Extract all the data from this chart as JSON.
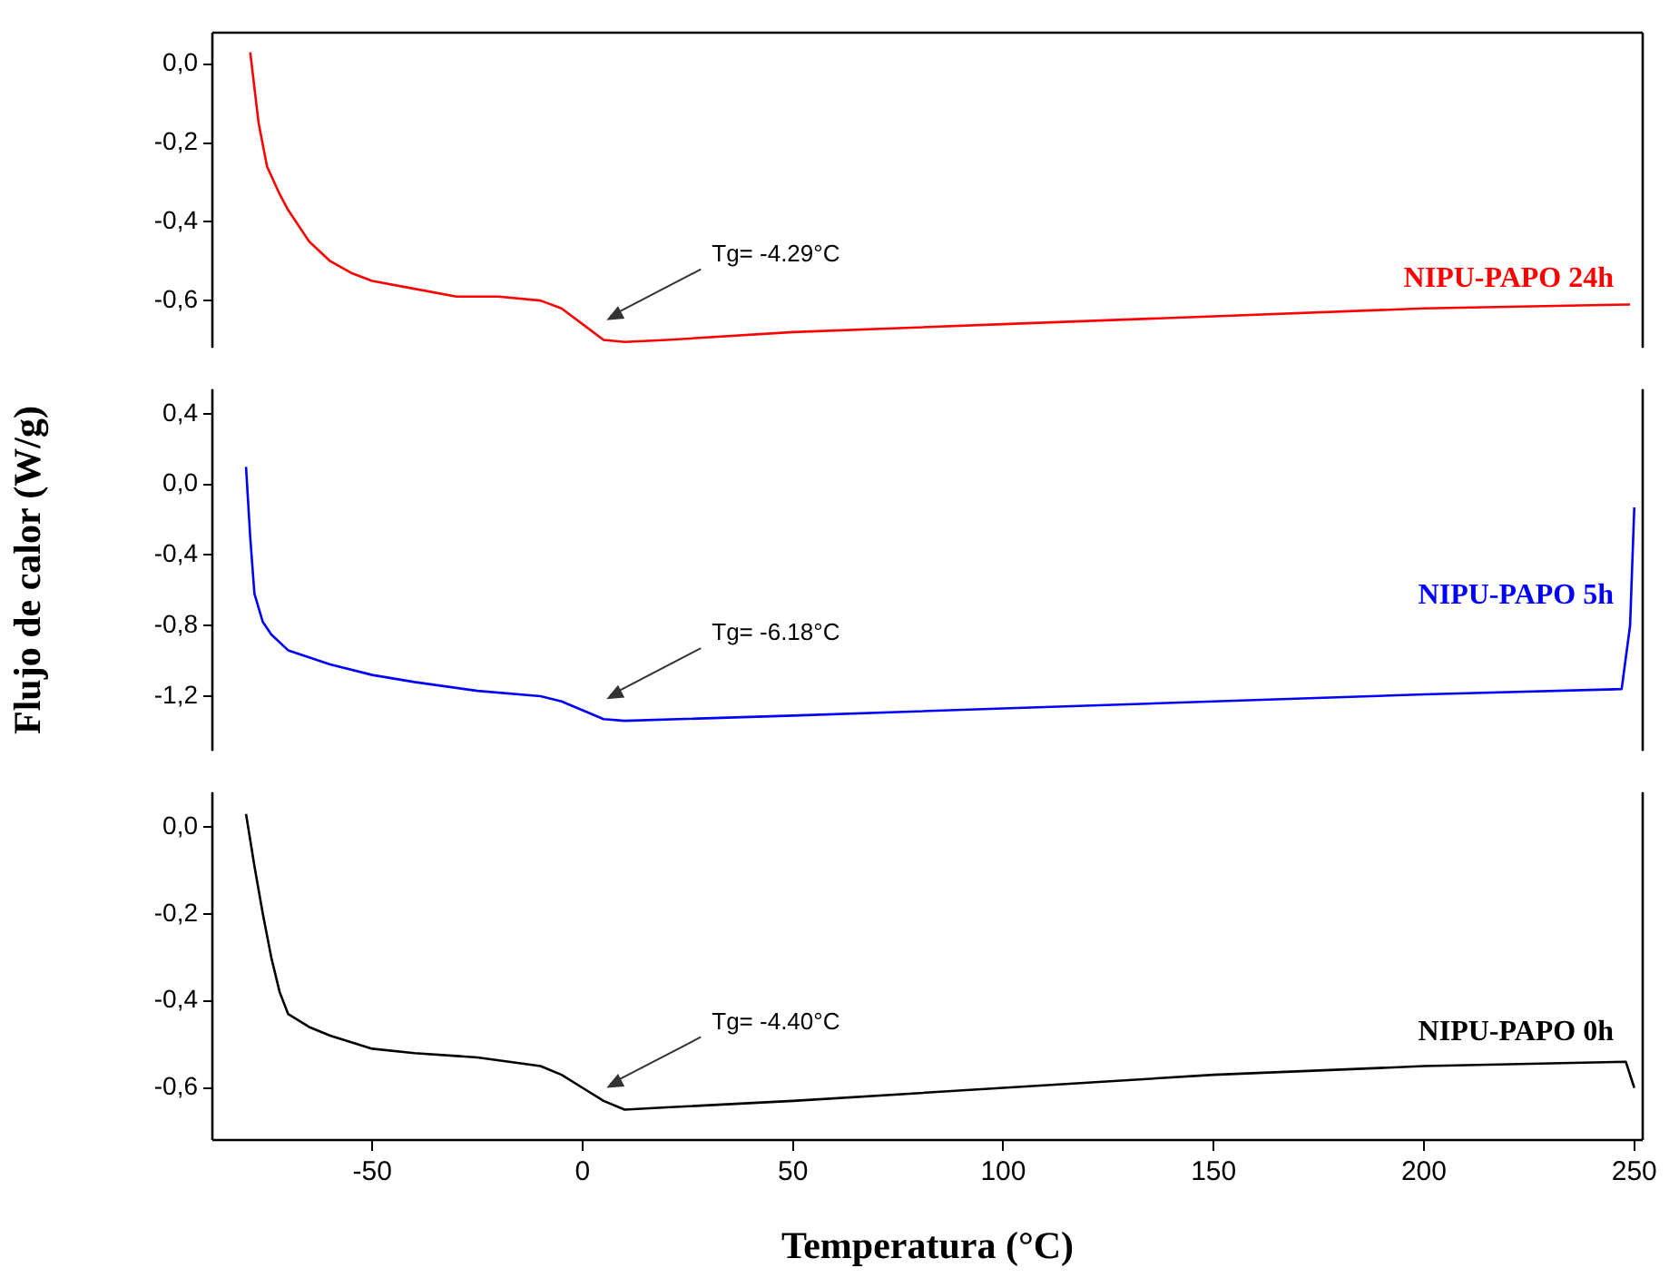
{
  "chart_data": [
    {
      "type": "line",
      "xlim": [
        -88,
        252
      ],
      "xticks": [
        -50,
        0,
        50,
        100,
        150,
        200,
        250
      ],
      "ylim": [
        -0.72,
        0.08
      ],
      "yticks": [
        {
          "value": 0,
          "label": "0,0"
        },
        {
          "value": -0.2,
          "label": "-0,2"
        },
        {
          "value": -0.4,
          "label": "-0,4"
        },
        {
          "value": -0.6,
          "label": "-0,6"
        }
      ],
      "tick_labels": "y",
      "legend": false,
      "grid": false,
      "series": [
        {
          "name": "NIPU-PAPO 24h",
          "color": "#ff0000",
          "x": [
            -79,
            -77,
            -75,
            -72,
            -70,
            -65,
            -60,
            -55,
            -50,
            -40,
            -30,
            -20,
            -10,
            -5,
            0,
            5,
            10,
            20,
            50,
            100,
            150,
            200,
            249
          ],
          "values": [
            0.03,
            -0.15,
            -0.26,
            -0.33,
            -0.37,
            -0.45,
            -0.5,
            -0.53,
            -0.55,
            -0.57,
            -0.59,
            -0.59,
            -0.6,
            -0.62,
            -0.66,
            -0.7,
            -0.705,
            -0.7,
            -0.68,
            -0.66,
            -0.64,
            -0.62,
            -0.61
          ]
        }
      ],
      "annotations": [
        "Tg= -4.29°C"
      ]
    },
    {
      "type": "line",
      "xlim": [
        -88,
        252
      ],
      "xticks": [
        -50,
        0,
        50,
        100,
        150,
        200,
        250
      ],
      "ylim": [
        -1.51,
        0.54
      ],
      "yticks": [
        {
          "value": 0.4,
          "label": "0,4"
        },
        {
          "value": 0,
          "label": "0,0"
        },
        {
          "value": -0.4,
          "label": "-0,4"
        },
        {
          "value": -0.8,
          "label": "-0,8"
        },
        {
          "value": -1.2,
          "label": "-1,2"
        }
      ],
      "tick_labels": "y",
      "legend": false,
      "grid": false,
      "ylabel": "Flujo de calor (W/g)",
      "series": [
        {
          "name": "NIPU-PAPO 5h",
          "color": "#0000ff",
          "x": [
            -80,
            -79,
            -78,
            -76,
            -74,
            -70,
            -60,
            -50,
            -40,
            -25,
            -10,
            -5,
            0,
            5,
            10,
            50,
            100,
            150,
            200,
            247,
            249,
            250
          ],
          "values": [
            0.1,
            -0.3,
            -0.62,
            -0.78,
            -0.85,
            -0.94,
            -1.02,
            -1.08,
            -1.12,
            -1.17,
            -1.2,
            -1.23,
            -1.28,
            -1.33,
            -1.34,
            -1.31,
            -1.27,
            -1.23,
            -1.19,
            -1.16,
            -0.8,
            -0.13
          ]
        }
      ],
      "annotations": [
        "Tg= -6.18°C"
      ]
    },
    {
      "type": "line",
      "xlim": [
        -88,
        252
      ],
      "xticks": [
        -50,
        0,
        50,
        100,
        150,
        200,
        250
      ],
      "ylim": [
        -0.72,
        0.08
      ],
      "yticks": [
        {
          "value": 0,
          "label": "0,0"
        },
        {
          "value": -0.2,
          "label": "-0,2"
        },
        {
          "value": -0.4,
          "label": "-0,4"
        },
        {
          "value": -0.6,
          "label": "-0,6"
        }
      ],
      "legend": false,
      "grid": false,
      "xlabel": "Temperatura (°C)",
      "series": [
        {
          "name": "NIPU-PAPO 0h",
          "color": "#000000",
          "x": [
            -80,
            -79,
            -78,
            -76,
            -74,
            -72,
            -70,
            -65,
            -60,
            -50,
            -40,
            -25,
            -10,
            -5,
            0,
            5,
            10,
            20,
            50,
            100,
            150,
            200,
            248,
            250
          ],
          "values": [
            0.03,
            -0.03,
            -0.09,
            -0.2,
            -0.3,
            -0.38,
            -0.43,
            -0.46,
            -0.48,
            -0.51,
            -0.52,
            -0.53,
            -0.55,
            -0.57,
            -0.6,
            -0.63,
            -0.65,
            -0.645,
            -0.63,
            -0.6,
            -0.57,
            -0.55,
            -0.54,
            -0.6
          ]
        }
      ],
      "annotations": [
        "Tg= -4.40°C"
      ]
    }
  ]
}
